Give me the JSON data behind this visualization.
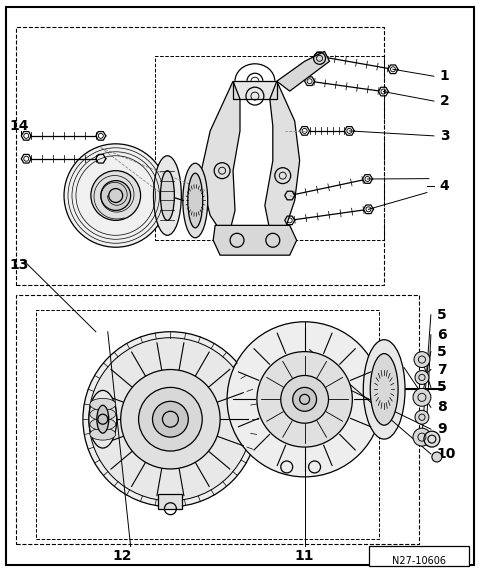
{
  "bg_color": "#ffffff",
  "border_color": "#000000",
  "line_color": "#000000",
  "label_color": "#000000",
  "fig_width": 4.8,
  "fig_height": 5.72,
  "dpi": 100,
  "watermark": "N27-10606",
  "image_path": null
}
